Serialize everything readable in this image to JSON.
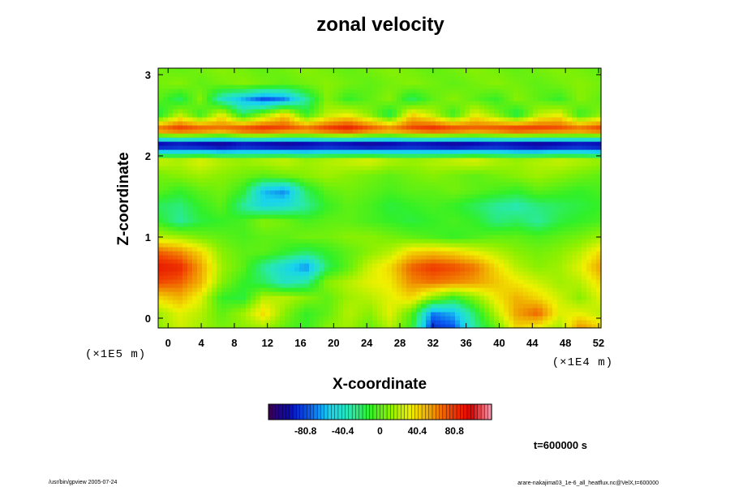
{
  "chart_data": {
    "type": "heatmap",
    "title": "zonal velocity",
    "xlabel": "X-coordinate",
    "ylabel": "Z-coordinate",
    "x_unit": "(×1E4 m)",
    "y_unit": "(×1E5 m)",
    "xlim": [
      -1.2,
      52.3
    ],
    "ylim": [
      -0.12,
      3.08
    ],
    "x_ticks": [
      0,
      4,
      8,
      12,
      16,
      20,
      24,
      28,
      32,
      36,
      40,
      44,
      48,
      52
    ],
    "y_ticks": [
      0,
      1,
      2,
      3
    ],
    "colorbar": {
      "min": -121,
      "max": 121,
      "ticks": [
        -80.8,
        -40.4,
        0,
        40.4,
        80.8
      ],
      "tick_labels": [
        "-80.8",
        "-40.4",
        "0",
        "40.4",
        "80.8"
      ],
      "colormap": [
        "#3b004a",
        "#0a0ab4",
        "#0a5af0",
        "#18d2f0",
        "#28e8b0",
        "#30f028",
        "#8cf000",
        "#f0f000",
        "#f0a000",
        "#f04000",
        "#e00000",
        "#f0a0b4"
      ]
    },
    "grid": [
      [
        10,
        25,
        15,
        5,
        10,
        15,
        0,
        -10,
        10,
        15,
        0,
        20,
        -10,
        -90,
        -80,
        -30,
        0,
        40,
        30,
        15,
        60,
        40
      ],
      [
        15,
        30,
        20,
        0,
        15,
        40,
        10,
        -10,
        0,
        20,
        10,
        30,
        0,
        -70,
        -60,
        -20,
        20,
        55,
        70,
        30,
        30,
        20
      ],
      [
        40,
        50,
        30,
        -10,
        -15,
        20,
        20,
        10,
        0,
        15,
        20,
        30,
        40,
        10,
        -10,
        10,
        35,
        50,
        40,
        25,
        10,
        30
      ],
      [
        75,
        70,
        50,
        10,
        -10,
        -20,
        -40,
        -30,
        10,
        20,
        30,
        35,
        60,
        65,
        60,
        55,
        45,
        35,
        25,
        15,
        20,
        40
      ],
      [
        90,
        85,
        55,
        15,
        0,
        -30,
        -50,
        -70,
        -20,
        0,
        25,
        40,
        70,
        80,
        75,
        65,
        40,
        20,
        10,
        15,
        30,
        55
      ],
      [
        70,
        60,
        40,
        10,
        0,
        0,
        -10,
        -20,
        -10,
        0,
        10,
        20,
        40,
        45,
        40,
        30,
        20,
        10,
        5,
        10,
        20,
        40
      ],
      [
        20,
        15,
        5,
        0,
        -5,
        0,
        0,
        5,
        5,
        10,
        10,
        5,
        0,
        -5,
        -10,
        -5,
        0,
        0,
        -5,
        0,
        5,
        15
      ],
      [
        -10,
        -30,
        -15,
        -10,
        -5,
        10,
        5,
        -5,
        0,
        0,
        -5,
        -10,
        -15,
        -10,
        -5,
        -10,
        -25,
        -20,
        -30,
        -15,
        -10,
        -5
      ],
      [
        -20,
        -25,
        -10,
        0,
        -30,
        -50,
        -45,
        -30,
        -10,
        0,
        -5,
        -15,
        -10,
        -5,
        -10,
        -20,
        -30,
        -35,
        -25,
        -20,
        -15,
        -10
      ],
      [
        0,
        -10,
        0,
        5,
        -10,
        -60,
        -70,
        -20,
        0,
        5,
        0,
        -5,
        0,
        0,
        5,
        0,
        -5,
        -10,
        0,
        -5,
        -10,
        -5
      ],
      [
        5,
        10,
        15,
        10,
        5,
        0,
        5,
        10,
        15,
        10,
        5,
        0,
        5,
        10,
        5,
        0,
        5,
        10,
        15,
        10,
        5,
        0
      ],
      [
        25,
        20,
        30,
        20,
        15,
        20,
        25,
        15,
        20,
        25,
        30,
        20,
        15,
        20,
        25,
        30,
        20,
        15,
        20,
        25,
        20,
        15
      ],
      [
        -115,
        -110,
        -115,
        -120,
        -110,
        -115,
        -120,
        -115,
        -110,
        -115,
        -120,
        -115,
        -110,
        -115,
        -120,
        -115,
        -110,
        -115,
        -120,
        -115,
        -110,
        -115
      ],
      [
        75,
        85,
        80,
        70,
        85,
        90,
        80,
        75,
        85,
        95,
        80,
        70,
        80,
        90,
        85,
        75,
        80,
        90,
        85,
        80,
        75,
        85
      ],
      [
        -20,
        20,
        -10,
        30,
        -20,
        10,
        40,
        -10,
        20,
        30,
        10,
        -20,
        40,
        20,
        -10,
        30,
        10,
        -20,
        20,
        30,
        -10,
        10
      ],
      [
        0,
        -20,
        10,
        -40,
        -60,
        -80,
        -70,
        -30,
        10,
        -10,
        0,
        10,
        -20,
        0,
        10,
        0,
        -10,
        10,
        0,
        -10,
        10,
        0
      ],
      [
        5,
        10,
        0,
        5,
        10,
        5,
        0,
        5,
        10,
        5,
        0,
        5,
        10,
        5,
        0,
        5,
        10,
        5,
        0,
        5,
        10,
        5
      ],
      [
        5,
        0,
        5,
        10,
        5,
        0,
        5,
        10,
        5,
        0,
        5,
        10,
        5,
        0,
        5,
        10,
        5,
        0,
        5,
        10,
        5,
        0
      ]
    ],
    "time_label": "t=600000 s"
  },
  "footer": {
    "left": "/usr/bin/gpview 2005-07-24",
    "right": "arare-nakajima03_1e-6_all_heatflux.nc@VelX,t=600000"
  }
}
